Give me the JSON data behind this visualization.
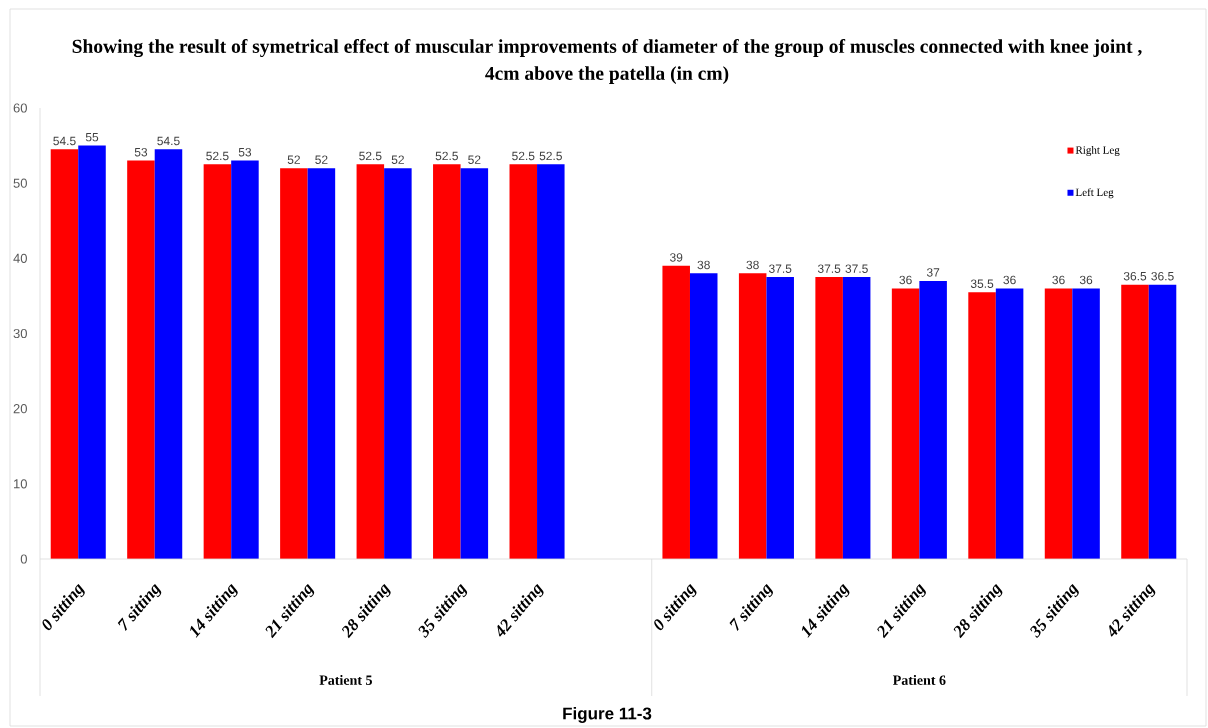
{
  "chart_data": {
    "type": "bar",
    "title": "Showing the result of symetrical effect of muscular improvements of diameter of the group of muscles connected with knee joint , 4cm above the patella (in cm)",
    "categories": [
      "0 sitting",
      "7 sitting",
      "14 sitting",
      "21 sitting",
      "28 sitting",
      "35 sitting",
      "42 sitting",
      null,
      "0 sitting",
      "7 sitting",
      "14 sitting",
      "21 sitting",
      "28 sitting",
      "35 sitting",
      "42 sitting"
    ],
    "series": [
      {
        "name": "Right Leg",
        "color": "#ff0000",
        "values": [
          54.5,
          53,
          52.5,
          52,
          52.5,
          52.5,
          52.5,
          null,
          39,
          38,
          37.5,
          36,
          35.5,
          36,
          36.5
        ]
      },
      {
        "name": "Left Leg",
        "color": "#0000ff",
        "values": [
          55,
          54.5,
          53,
          52,
          52,
          52,
          52.5,
          null,
          38,
          37.5,
          37.5,
          37,
          36,
          36,
          36.5
        ]
      }
    ],
    "ylim": [
      0,
      60
    ],
    "yticks": [
      0,
      10,
      20,
      30,
      40,
      50,
      60
    ],
    "legend": "top right",
    "data_labels": true,
    "annotations": [
      "Patient 5",
      "Patient 6",
      "Figure 11-3"
    ]
  }
}
